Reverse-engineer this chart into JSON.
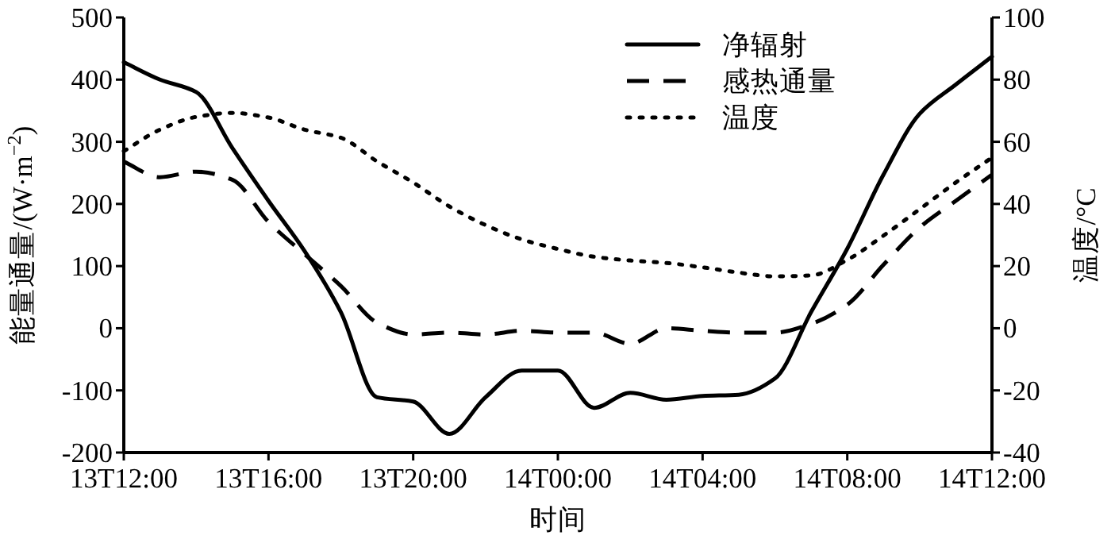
{
  "chart_data": {
    "type": "line",
    "xlabel": "时间",
    "ylabel": "能量通量/(W·m$^{−2}$)",
    "y2label": "温度/°C",
    "legend": "top right",
    "grid": false,
    "categories": [
      "13T12:00",
      null,
      null,
      null,
      "13T16:00",
      null,
      null,
      null,
      "13T20:00",
      null,
      null,
      null,
      "14T00:00",
      null,
      null,
      null,
      "14T04:00",
      null,
      null,
      null,
      "14T08:00",
      null,
      null,
      null,
      "14T12:00"
    ],
    "ylim": [
      -200,
      500
    ],
    "yticks": [
      -200,
      -100,
      0,
      100,
      200,
      300,
      400,
      500
    ],
    "y2lim": [
      -40,
      100
    ],
    "y2ticks": [
      -40,
      -20,
      0,
      20,
      40,
      60,
      80,
      100
    ],
    "series": [
      {
        "name": "净辐射",
        "color": "#000000",
        "line_style": "solid",
        "values": [
          428,
          400,
          380,
          290,
          205,
          124,
          26,
          -111,
          -118,
          -170,
          -111,
          -68,
          -68,
          -128,
          -104,
          -115,
          -109,
          -107,
          -81,
          26,
          128,
          247,
          345,
          392,
          437
        ]
      },
      {
        "name": "感热通量",
        "color": "#000000",
        "line_style": "dashed",
        "values": [
          268,
          243,
          252,
          239,
          171,
          119,
          68,
          9,
          -10,
          -7,
          -10,
          -4,
          -7,
          -7,
          -25,
          0,
          -4,
          -7,
          -7,
          7,
          38,
          102,
          162,
          205,
          247
        ]
      },
      {
        "name": "温度",
        "color": "#000000",
        "line_style": "dotted",
        "axis": "y2",
        "values": [
          57,
          63.9,
          68,
          69.3,
          67.8,
          63.9,
          61.3,
          53.7,
          46.9,
          39.2,
          33.2,
          28.6,
          25.5,
          23,
          21.8,
          21,
          19.6,
          17.9,
          16.7,
          17,
          22,
          29.8,
          38.3,
          46.9,
          54.9
        ]
      }
    ]
  }
}
